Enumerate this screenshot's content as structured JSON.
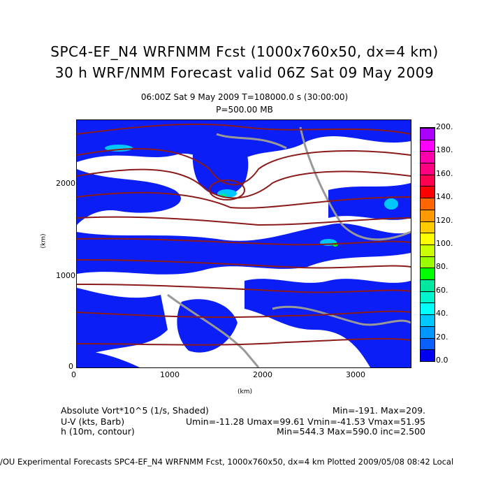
{
  "title": {
    "line1": "SPC4-EF_N4 WRFNMM Fcst (1000x760x50, dx=4 km)",
    "line2": "30 h WRF/NMM Forecast valid 06Z Sat 09 May 2009"
  },
  "subtitle": {
    "time": "06:00Z Sat  9 May 2009     T=108000.0 s (30:00:00)",
    "level": "P=500.00 MB"
  },
  "axes": {
    "x_label": "(km)",
    "y_label": "(km)",
    "x_ticks": [
      "0",
      "1000",
      "2000",
      "3000"
    ],
    "y_ticks": [
      "0",
      "1000",
      "2000"
    ]
  },
  "colorbar": {
    "labels": [
      "0.0",
      "20.",
      "40.",
      "60.",
      "80.",
      "100.",
      "120.",
      "140.",
      "160.",
      "180.",
      "200."
    ],
    "colors": [
      "#0000f0",
      "#0a5fff",
      "#0096ff",
      "#00c8ff",
      "#00ffff",
      "#00f5cc",
      "#00e8a0",
      "#00ff00",
      "#99ff00",
      "#ccff00",
      "#ffff00",
      "#ffcc00",
      "#ff9900",
      "#ff6600",
      "#ff0000",
      "#ff0050",
      "#ff0080",
      "#ff00aa",
      "#ff00ff",
      "#aa00ff"
    ]
  },
  "legend": {
    "rows": [
      {
        "name": "Absolute Vort*10^5 (1/s, Shaded)",
        "stats": "Min=-191. Max=209."
      },
      {
        "name": "U-V (kts, Barb)",
        "stats": "Umin=-11.28 Umax=99.61 Vmin=-41.53 Vmax=51.95"
      },
      {
        "name": "h (10m, contour)",
        "stats": "Min=544.3 Max=590.0 inc=2.500"
      }
    ]
  },
  "footer": "/OU Experimental Forecasts   SPC4-EF_N4 WRFNMM Fcst, 1000x760x50, dx=4 km   Plotted 2009/05/08 08:42 Local"
}
